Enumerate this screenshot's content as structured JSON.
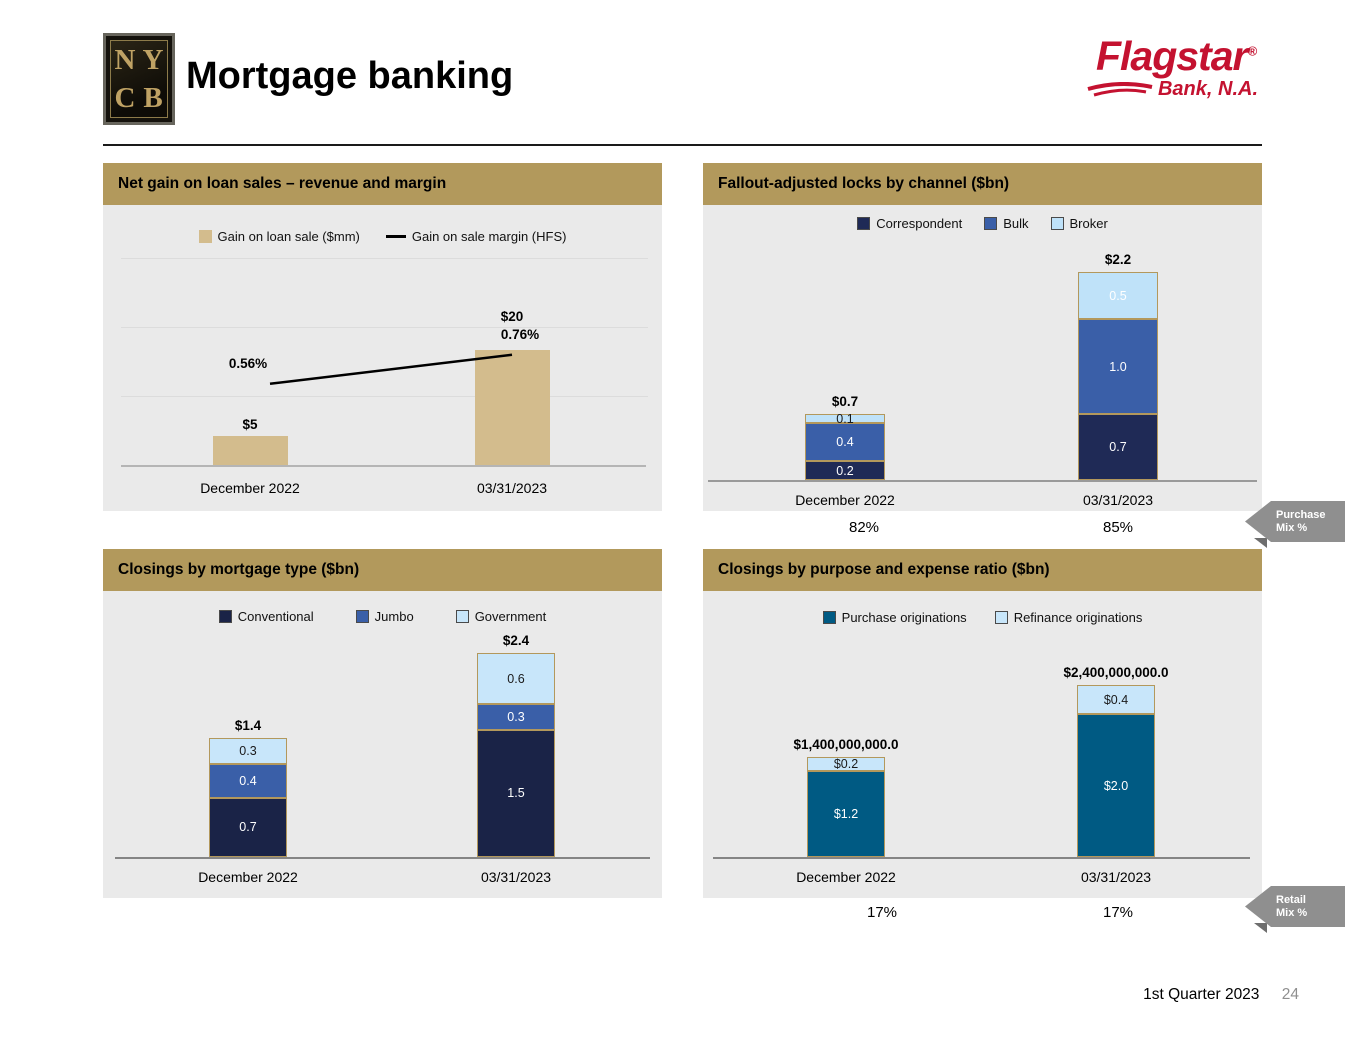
{
  "header": {
    "logo_letters": [
      "N",
      "Y",
      "C",
      "B"
    ],
    "title": "Mortgage banking",
    "flagstar": {
      "name": "Flagstar",
      "reg": "®",
      "sub": "Bank, N.A."
    }
  },
  "colors": {
    "panel_header_gold": "#b2995c",
    "panel_body_gray": "#eaeaea",
    "flagstar_red": "#c41230",
    "ribbon_gray": "#8f8f8f"
  },
  "annotations": {
    "purchase_mix": {
      "line1": "Purchase",
      "line2": "Mix %"
    },
    "retail_mix": {
      "line1": "Retail",
      "line2": "Mix %"
    }
  },
  "footer": {
    "quarter": "1st Quarter 2023",
    "page": "24"
  },
  "chart_data": [
    {
      "id": "net_gain",
      "type": "bar+line",
      "title": "Net gain on loan sales – revenue and margin",
      "categories": [
        "December 2022",
        "03/31/2023"
      ],
      "series": [
        {
          "name": "Gain on loan sale ($mm)",
          "chart_type": "bar",
          "marker": "square",
          "color": "#d3bc8d",
          "values": [
            5,
            20
          ],
          "point_labels": [
            "$5",
            "$20"
          ]
        },
        {
          "name": "Gain on sale margin (HFS)",
          "chart_type": "line",
          "marker": "line",
          "color": "#000000",
          "values": [
            0.56,
            0.76
          ],
          "point_labels": [
            "0.56%",
            "0.76%"
          ]
        }
      ],
      "ylim": [
        0,
        30
      ],
      "grid": true,
      "legend_position": "top"
    },
    {
      "id": "locks",
      "type": "stacked-bar",
      "title": "Fallout-adjusted locks by channel ($bn)",
      "categories": [
        "December 2022",
        "03/31/2023"
      ],
      "series": [
        {
          "name": "Correspondent",
          "color": "#1f2a56",
          "values": [
            0.2,
            0.7
          ],
          "point_labels": [
            "0.2",
            "0.7"
          ],
          "label_colors": [
            "#ffffff",
            "#ffffff"
          ]
        },
        {
          "name": "Bulk",
          "color": "#3a5fa8",
          "values": [
            0.4,
            1.0
          ],
          "point_labels": [
            "0.4",
            "1.0"
          ],
          "label_colors": [
            "#ffffff",
            "#ffffff"
          ]
        },
        {
          "name": "Broker",
          "color": "#bfe2f9",
          "values": [
            0.1,
            0.5
          ],
          "point_labels": [
            "0.1",
            "0.5"
          ],
          "label_colors": [
            "#1a1a1a",
            "#ffffff"
          ]
        }
      ],
      "totals": [
        "$0.7",
        "$2.2"
      ],
      "footnote_label": "Purchase Mix %",
      "footnote_values": [
        "82%",
        "85%"
      ],
      "legend_position": "top"
    },
    {
      "id": "mortgage_type",
      "type": "stacked-bar",
      "title": "Closings by mortgage type ($bn)",
      "categories": [
        "December 2022",
        "03/31/2023"
      ],
      "series": [
        {
          "name": "Conventional",
          "color": "#1a2347",
          "values": [
            0.7,
            1.5
          ],
          "point_labels": [
            "0.7",
            "1.5"
          ],
          "label_colors": [
            "#ffffff",
            "#ffffff"
          ]
        },
        {
          "name": "Jumbo",
          "color": "#3a5fa8",
          "values": [
            0.4,
            0.3
          ],
          "point_labels": [
            "0.4",
            "0.3"
          ],
          "label_colors": [
            "#ffffff",
            "#ffffff"
          ]
        },
        {
          "name": "Government",
          "color": "#c8e6fa",
          "values": [
            0.3,
            0.6
          ],
          "point_labels": [
            "0.3",
            "0.6"
          ],
          "label_colors": [
            "#1a1a1a",
            "#1a1a1a"
          ]
        }
      ],
      "totals": [
        "$1.4",
        "$2.4"
      ],
      "legend_position": "top"
    },
    {
      "id": "purpose",
      "type": "stacked-bar",
      "title": "Closings by purpose and expense ratio ($bn)",
      "categories": [
        "December 2022",
        "03/31/2023"
      ],
      "series": [
        {
          "name": "Purchase originations",
          "color": "#005a83",
          "values": [
            1.2,
            2.0
          ],
          "point_labels": [
            "$1.2",
            "$2.0"
          ],
          "label_colors": [
            "#ffffff",
            "#ffffff"
          ]
        },
        {
          "name": "Refinance originations",
          "color": "#c8e6fa",
          "values": [
            0.2,
            0.4
          ],
          "point_labels": [
            "$0.2",
            "$0.4"
          ],
          "label_colors": [
            "#1a1a1a",
            "#1a1a1a"
          ]
        }
      ],
      "totals": [
        "$1,400,000,000.0",
        "$2,400,000,000.0"
      ],
      "footnote_label": "Retail Mix %",
      "footnote_values": [
        "17%",
        "17%"
      ],
      "legend_position": "top"
    }
  ]
}
